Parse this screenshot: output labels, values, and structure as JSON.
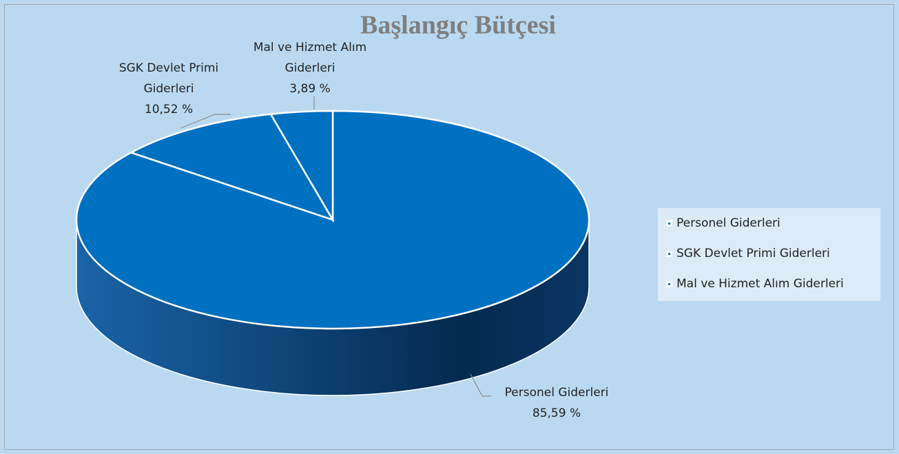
{
  "chart_data": {
    "type": "pie",
    "title": "Başlangıç Bütçesi",
    "categories": [
      "Personel Giderleri",
      "SGK Devlet Primi Giderleri",
      "Mal ve Hizmet Alım Giderleri"
    ],
    "values": [
      85.59,
      10.52,
      3.89
    ],
    "value_labels": [
      "85,59 %",
      "10,52 %",
      "3,89 %"
    ],
    "colors": [
      "#0070c0",
      "#0070c0",
      "#0070c0"
    ],
    "legend": "right"
  }
}
